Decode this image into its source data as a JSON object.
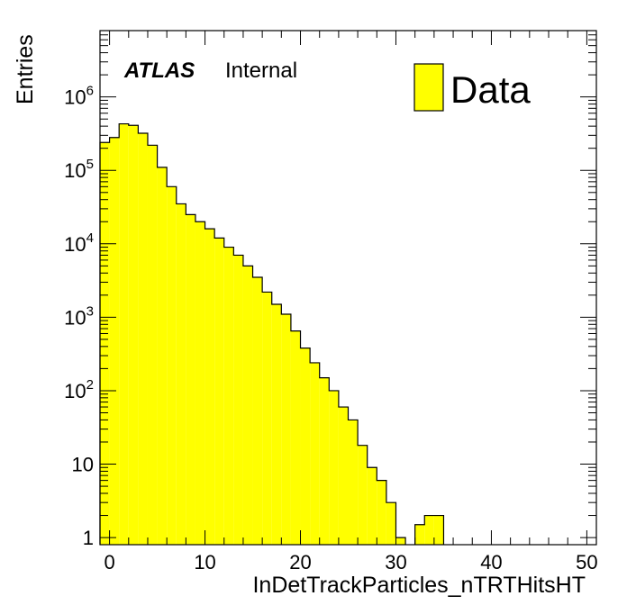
{
  "chart_data": {
    "type": "bar",
    "style": "filled-histogram",
    "xlabel": "InDetTrackParticles_nTRTHitsHT",
    "ylabel": "Entries",
    "xlim": [
      -1,
      51
    ],
    "ylim": [
      0.8,
      8000000
    ],
    "yscale": "log",
    "grid": false,
    "legend_position": "top-right",
    "x_ticks": [
      0,
      10,
      20,
      30,
      40,
      50
    ],
    "y_ticks": [
      {
        "value": 1,
        "label": "1"
      },
      {
        "value": 10,
        "label": "10"
      },
      {
        "value": 100,
        "base": "10",
        "exp": "2"
      },
      {
        "value": 1000,
        "base": "10",
        "exp": "3"
      },
      {
        "value": 10000,
        "base": "10",
        "exp": "4"
      },
      {
        "value": 100000,
        "base": "10",
        "exp": "5"
      },
      {
        "value": 1000000,
        "base": "10",
        "exp": "6"
      }
    ],
    "bin_width": 1,
    "bin_lower_edges": [
      -1,
      0,
      1,
      2,
      3,
      4,
      5,
      6,
      7,
      8,
      9,
      10,
      11,
      12,
      13,
      14,
      15,
      16,
      17,
      18,
      19,
      20,
      21,
      22,
      23,
      24,
      25,
      26,
      27,
      28,
      29,
      30,
      31,
      32,
      33,
      34
    ],
    "series": [
      {
        "name": "Data",
        "color": "#ffff00",
        "values": [
          240000,
          280000,
          430000,
          410000,
          320000,
          220000,
          110000,
          60000,
          35000,
          25000,
          20000,
          16000,
          12000,
          9000,
          7000,
          5000,
          3500,
          2200,
          1500,
          1100,
          650,
          380,
          240,
          150,
          100,
          60,
          40,
          18,
          9,
          6,
          3,
          1,
          0,
          1.5,
          2,
          2
        ]
      }
    ],
    "annotations": {
      "atlas": "ATLAS",
      "status": "Internal"
    }
  }
}
